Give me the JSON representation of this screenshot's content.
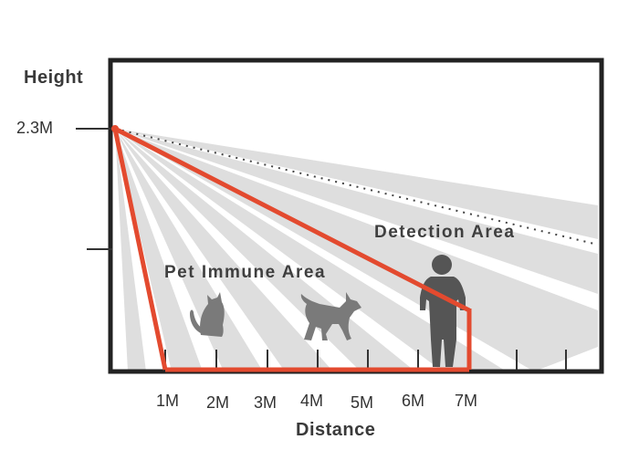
{
  "labels": {
    "y_axis_title": "Height",
    "y_tick": "2.3M",
    "x_axis_title": "Distance",
    "detection_area": "Detection Area",
    "pet_immune_area": "Pet Immune Area"
  },
  "x_ticks": [
    "1M",
    "2M",
    "3M",
    "4M",
    "5M",
    "6M",
    "7M"
  ],
  "colors": {
    "frame": "#222222",
    "zone_outline": "#e34a2f",
    "beam": "#dcdcdc",
    "silhouette": "#7a7a7a",
    "person": "#555555"
  },
  "icons": [
    "cat-icon",
    "dog-icon",
    "person-icon"
  ]
}
